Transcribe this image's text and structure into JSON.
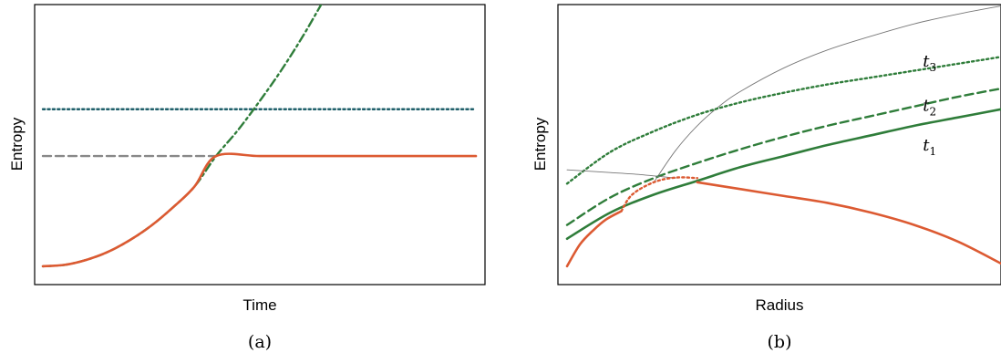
{
  "colors": {
    "orange": "#dc5a32",
    "green": "#2f7d3a",
    "teal": "#1f5f6a",
    "gray": "#888888",
    "thin_gray": "#777777"
  },
  "chart_data": [
    {
      "type": "line",
      "caption": "(a)",
      "xlabel": "Time",
      "ylabel": "Entropy",
      "xlim": [
        0,
        1
      ],
      "ylim": [
        0,
        1
      ],
      "grid": false,
      "legend": "none",
      "series": [
        {
          "style": "dotted",
          "color": "#1f5f6a",
          "x": [
            0.0,
            1.0
          ],
          "y": [
            0.62,
            0.62
          ]
        },
        {
          "style": "dashed",
          "color": "#888888",
          "x": [
            0.0,
            0.4
          ],
          "y": [
            0.45,
            0.45
          ]
        },
        {
          "style": "dash-dot",
          "color": "#2f7d3a",
          "x": [
            0.0,
            0.05,
            0.1,
            0.15,
            0.2,
            0.25,
            0.3,
            0.35,
            0.4,
            0.45,
            0.5,
            0.55,
            0.6,
            0.65
          ],
          "y": [
            0.05,
            0.055,
            0.073,
            0.102,
            0.144,
            0.197,
            0.263,
            0.339,
            0.45,
            0.543,
            0.648,
            0.76,
            0.884,
            1.02
          ]
        },
        {
          "style": "solid",
          "color": "#dc5a32",
          "x": [
            0.0,
            0.05,
            0.1,
            0.15,
            0.2,
            0.25,
            0.3,
            0.35,
            0.4,
            0.5,
            0.6,
            0.7,
            0.8,
            0.9,
            1.0
          ],
          "y": [
            0.05,
            0.055,
            0.073,
            0.102,
            0.144,
            0.197,
            0.263,
            0.339,
            0.45,
            0.45,
            0.45,
            0.45,
            0.45,
            0.45,
            0.45
          ]
        }
      ]
    },
    {
      "type": "line",
      "caption": "(b)",
      "xlabel": "Radius",
      "ylabel": "Entropy",
      "xlim": [
        0,
        1
      ],
      "ylim": [
        0,
        1
      ],
      "grid": false,
      "legend": "none",
      "annotations": [
        {
          "text": "t",
          "sub": "3",
          "x": 0.82,
          "y": 0.775
        },
        {
          "text": "t",
          "sub": "2",
          "x": 0.82,
          "y": 0.615
        },
        {
          "text": "t",
          "sub": "1",
          "x": 0.82,
          "y": 0.47
        }
      ],
      "series": [
        {
          "style": "thin-solid",
          "color": "#777777",
          "x": [
            0.2,
            0.25,
            0.3,
            0.35,
            0.4,
            0.5,
            0.6,
            0.7,
            0.8,
            0.9,
            1.0
          ],
          "y": [
            0.355,
            0.47,
            0.56,
            0.63,
            0.685,
            0.77,
            0.835,
            0.885,
            0.93,
            0.965,
            0.995
          ]
        },
        {
          "style": "dotted",
          "color": "#2f7d3a",
          "x": [
            0.0,
            0.1,
            0.2,
            0.3,
            0.4,
            0.5,
            0.6,
            0.7,
            0.8,
            0.9,
            1.0
          ],
          "y": [
            0.35,
            0.465,
            0.54,
            0.6,
            0.645,
            0.68,
            0.71,
            0.735,
            0.76,
            0.785,
            0.81
          ]
        },
        {
          "style": "dashed",
          "color": "#2f7d3a",
          "x": [
            0.0,
            0.1,
            0.2,
            0.3,
            0.4,
            0.5,
            0.6,
            0.7,
            0.8,
            0.9,
            1.0
          ],
          "y": [
            0.2,
            0.3,
            0.37,
            0.425,
            0.475,
            0.52,
            0.56,
            0.595,
            0.63,
            0.665,
            0.695
          ]
        },
        {
          "style": "solid",
          "color": "#2f7d3a",
          "x": [
            0.0,
            0.1,
            0.2,
            0.3,
            0.4,
            0.5,
            0.6,
            0.7,
            0.8,
            0.9,
            1.0
          ],
          "y": [
            0.15,
            0.245,
            0.31,
            0.36,
            0.41,
            0.45,
            0.49,
            0.525,
            0.56,
            0.59,
            0.62
          ]
        },
        {
          "style": "thin-gray",
          "color": "#777777",
          "x": [
            0.0,
            0.05,
            0.1,
            0.15,
            0.2,
            0.25
          ],
          "y": [
            0.4,
            0.395,
            0.39,
            0.385,
            0.378,
            0.37
          ]
        },
        {
          "style": "dotted",
          "color": "#dc5a32",
          "x": [
            0.125,
            0.15,
            0.2,
            0.25,
            0.3
          ],
          "y": [
            0.25,
            0.31,
            0.355,
            0.372,
            0.37
          ]
        },
        {
          "style": "solid",
          "color": "#dc5a32",
          "x": [
            0.0,
            0.03,
            0.06,
            0.09,
            0.125
          ],
          "y": [
            0.05,
            0.13,
            0.18,
            0.22,
            0.25
          ]
        },
        {
          "style": "solid",
          "color": "#dc5a32",
          "x": [
            0.3,
            0.4,
            0.5,
            0.6,
            0.7,
            0.8,
            0.9,
            1.0
          ],
          "y": [
            0.355,
            0.33,
            0.305,
            0.28,
            0.245,
            0.2,
            0.14,
            0.06
          ]
        }
      ]
    }
  ]
}
